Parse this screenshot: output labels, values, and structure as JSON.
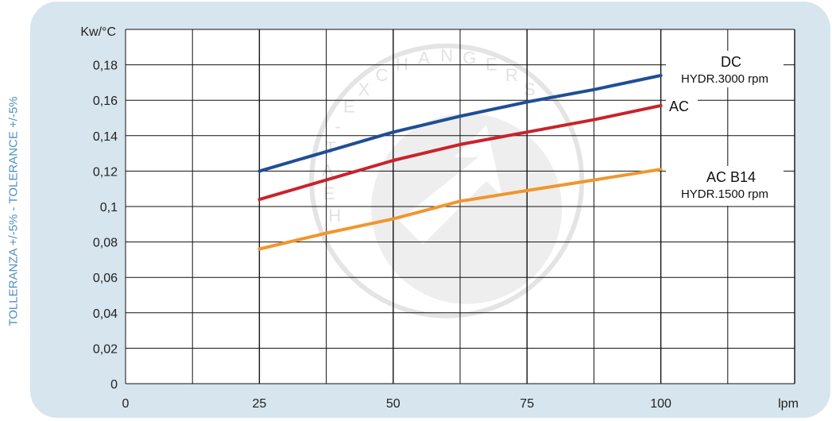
{
  "side_label": "TOLLERANZA +/-5% - TOLERANCE +/-5%",
  "chart_data": {
    "type": "line",
    "title": "",
    "ylabel": "Kw/°C",
    "xlabel": "lpm",
    "xlim": [
      0,
      125
    ],
    "ylim": [
      0,
      0.2
    ],
    "grid": true,
    "x_tick_labels": [
      "0",
      "25",
      "50",
      "75",
      "100"
    ],
    "x_tick_values": [
      0,
      25,
      50,
      75,
      100
    ],
    "y_tick_labels": [
      "0",
      "0,02",
      "0,04",
      "0,06",
      "0,08",
      "0,1",
      "0,12",
      "0,14",
      "0,16",
      "0,18"
    ],
    "y_tick_values": [
      0,
      0.02,
      0.04,
      0.06,
      0.08,
      0.1,
      0.12,
      0.14,
      0.16,
      0.18
    ],
    "series": [
      {
        "name": "DC",
        "sublabel": "HYDR.3000 rpm",
        "color": "#1f4e96",
        "x": [
          25,
          37.5,
          50,
          62.5,
          75,
          87.5,
          100
        ],
        "y": [
          0.12,
          0.131,
          0.142,
          0.151,
          0.159,
          0.166,
          0.174
        ]
      },
      {
        "name": "AC",
        "sublabel": "",
        "color": "#c8232c",
        "x": [
          25,
          37.5,
          50,
          62.5,
          75,
          87.5,
          100
        ],
        "y": [
          0.104,
          0.115,
          0.126,
          0.135,
          0.142,
          0.149,
          0.157
        ]
      },
      {
        "name": "AC B14",
        "sublabel": "HYDR.1500 rpm",
        "color": "#f0962e",
        "x": [
          25,
          37.5,
          50,
          62.5,
          75,
          87.5,
          100
        ],
        "y": [
          0.076,
          0.085,
          0.093,
          0.103,
          0.109,
          0.115,
          0.121
        ]
      }
    ],
    "watermark_text": "HEAT-EXCHANGERS"
  }
}
